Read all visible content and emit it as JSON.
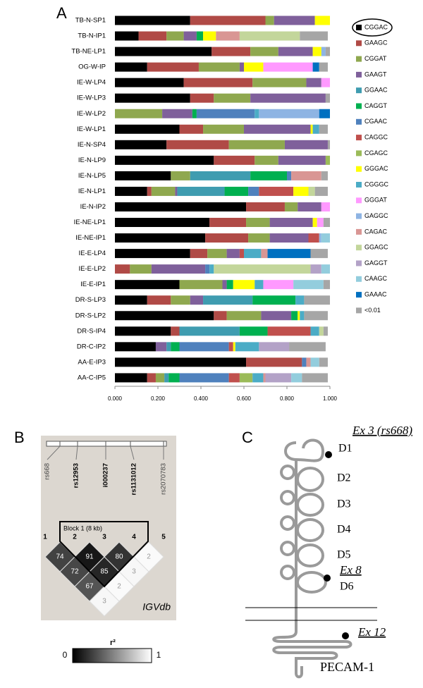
{
  "chart_data": {
    "type": "stacked-barh",
    "panel_label": "A",
    "categories": [
      "TB-N-SP1",
      "TB-N-IP1",
      "TB-NE-LP1",
      "OG-W-IP",
      "IE-W-LP4",
      "IE-W-LP3",
      "IE-W-LP2",
      "IE-W-LP1",
      "IE-N-SP4",
      "IE-N-LP9",
      "IE-N-LP5",
      "IE-N-LP1",
      "IE-N-IP2",
      "IE-NE-LP1",
      "IE-NE-IP1",
      "IE-E-LP4",
      "IE-E-LP2",
      "IE-E-IP1",
      "DR-S-LP3",
      "DR-S-LP2",
      "DR-S-IP4",
      "DR-C-IP2",
      "AA-E-IP3",
      "AA-C-IP5"
    ],
    "xlim": [
      0,
      1
    ],
    "xticks": [
      {
        "value": 0,
        "label": "0.000"
      },
      {
        "value": 0.2,
        "label": "0.200"
      },
      {
        "value": 0.4,
        "label": "0.400"
      },
      {
        "value": 0.6,
        "label": "0.600"
      },
      {
        "value": 0.8,
        "label": "0.800"
      },
      {
        "value": 1,
        "label": "1.000"
      }
    ],
    "series": [
      {
        "name": "CGGAC",
        "color": "#000000",
        "values": [
          0.35,
          0.11,
          0.45,
          0.15,
          0.32,
          0.35,
          0,
          0.3,
          0.24,
          0.46,
          0.26,
          0.15,
          0.61,
          0.44,
          0.42,
          0.35,
          0,
          0.3,
          0.15,
          0.46,
          0.26,
          0.19,
          0.61,
          0.15
        ]
      },
      {
        "name": "GAAGC",
        "color": "#b04a46",
        "values": [
          0.35,
          0.13,
          0.18,
          0.24,
          0.32,
          0.11,
          0,
          0.11,
          0.29,
          0.19,
          0,
          0.02,
          0.18,
          0.17,
          0.2,
          0.08,
          0.07,
          0,
          0.11,
          0.06,
          0.04,
          0,
          0.26,
          0.04
        ]
      },
      {
        "name": "CGGAT",
        "color": "#8fa84f",
        "values": [
          0.04,
          0.08,
          0.13,
          0.19,
          0.25,
          0.17,
          0.22,
          0.19,
          0.26,
          0.11,
          0.09,
          0.11,
          0.06,
          0.11,
          0.1,
          0.09,
          0.1,
          0.2,
          0.09,
          0.16,
          0,
          0,
          0,
          0.04
        ]
      },
      {
        "name": "GAAGT",
        "color": "#7f609b",
        "values": [
          0.19,
          0.06,
          0.16,
          0.02,
          0.07,
          0.35,
          0.14,
          0.31,
          0.2,
          0.22,
          0,
          0.01,
          0.11,
          0.2,
          0.18,
          0.06,
          0.25,
          0.02,
          0.06,
          0.14,
          0,
          0.05,
          0,
          0
        ]
      },
      {
        "name": "GGAAC",
        "color": "#3f9cb0",
        "values": [
          0,
          0,
          0,
          0,
          0,
          0,
          0,
          0,
          0,
          0,
          0.28,
          0.22,
          0,
          0,
          0,
          0,
          0,
          0,
          0.23,
          0,
          0.28,
          0.02,
          0,
          0.02
        ]
      },
      {
        "name": "CAGGT",
        "color": "#00b050",
        "values": [
          0,
          0.03,
          0,
          0,
          0,
          0,
          0.02,
          0,
          0,
          0,
          0.17,
          0.11,
          0,
          0,
          0,
          0,
          0,
          0.03,
          0.2,
          0.03,
          0.13,
          0.04,
          0,
          0.05
        ]
      },
      {
        "name": "CGAAC",
        "color": "#4f81bd",
        "values": [
          0,
          0,
          0,
          0,
          0,
          0,
          0.27,
          0,
          0,
          0,
          0.02,
          0.05,
          0,
          0,
          0,
          0,
          0.02,
          0,
          0,
          0,
          0,
          0.23,
          0.02,
          0.23
        ]
      },
      {
        "name": "CAGGC",
        "color": "#c0504d",
        "values": [
          0,
          0,
          0,
          0,
          0,
          0,
          0,
          0,
          0,
          0,
          0,
          0.16,
          0,
          0,
          0.05,
          0.02,
          0,
          0,
          0,
          0,
          0.2,
          0.02,
          0,
          0.05
        ]
      },
      {
        "name": "CGAGC",
        "color": "#9bbb59",
        "values": [
          0,
          0,
          0,
          0,
          0,
          0,
          0,
          0,
          0,
          0.02,
          0,
          0,
          0,
          0,
          0,
          0,
          0,
          0,
          0,
          0,
          0,
          0,
          0,
          0.06
        ]
      },
      {
        "name": "GGGAC",
        "color": "#ffff00",
        "values": [
          0.07,
          0.06,
          0.04,
          0.09,
          0,
          0,
          0,
          0.01,
          0,
          0,
          0,
          0.07,
          0,
          0.02,
          0,
          0,
          0,
          0.1,
          0,
          0.01,
          0,
          0.01,
          0,
          0
        ]
      },
      {
        "name": "CGGGC",
        "color": "#4bacc6",
        "values": [
          0,
          0,
          0,
          0,
          0,
          0,
          0.02,
          0.03,
          0,
          0,
          0,
          0,
          0,
          0,
          0,
          0.08,
          0.02,
          0.04,
          0.04,
          0.02,
          0.04,
          0.11,
          0,
          0.05
        ]
      },
      {
        "name": "GGGAT",
        "color": "#ff99ff",
        "values": [
          0,
          0,
          0,
          0.23,
          0.04,
          0,
          0,
          0,
          0,
          0,
          0,
          0,
          0.04,
          0.03,
          0,
          0,
          0,
          0.14,
          0,
          0,
          0,
          0,
          0,
          0
        ]
      },
      {
        "name": "GAGGC",
        "color": "#8eb4e3",
        "values": [
          0,
          0,
          0.02,
          0,
          0,
          0,
          0.28,
          0,
          0,
          0,
          0,
          0,
          0,
          0,
          0.01,
          0,
          0,
          0,
          0,
          0,
          0,
          0,
          0,
          0
        ]
      },
      {
        "name": "CAGAC",
        "color": "#d99694",
        "values": [
          0,
          0.11,
          0,
          0,
          0,
          0,
          0,
          0,
          0,
          0,
          0.14,
          0,
          0,
          0,
          0,
          0.03,
          0,
          0,
          0,
          0,
          0,
          0,
          0.02,
          0.01
        ]
      },
      {
        "name": "GGAGC",
        "color": "#c3d69b",
        "values": [
          0,
          0.28,
          0,
          0,
          0,
          0,
          0,
          0,
          0,
          0,
          0,
          0.03,
          0,
          0,
          0,
          0,
          0.45,
          0,
          0,
          0,
          0.02,
          0,
          0,
          0
        ]
      },
      {
        "name": "GAGGT",
        "color": "#b3a2c7",
        "values": [
          0,
          0,
          0,
          0,
          0,
          0,
          0,
          0,
          0,
          0,
          0,
          0,
          0,
          0,
          0,
          0,
          0.05,
          0,
          0,
          0,
          0,
          0.14,
          0,
          0.12
        ]
      },
      {
        "name": "CAAGC",
        "color": "#93cddd",
        "values": [
          0,
          0,
          0,
          0,
          0,
          0,
          0,
          0,
          0,
          0,
          0,
          0,
          0,
          0,
          0.04,
          0,
          0.04,
          0.14,
          0,
          0,
          0,
          0,
          0.04,
          0.05
        ]
      },
      {
        "name": "GAAAC",
        "color": "#0070c0",
        "values": [
          0,
          0,
          0,
          0.03,
          0,
          0,
          0.05,
          0,
          0,
          0,
          0,
          0,
          0,
          0,
          0,
          0.2,
          0,
          0,
          0,
          0,
          0,
          0,
          0,
          0
        ]
      },
      {
        "name": "<0.01",
        "color": "#a6a6a6",
        "values": [
          0,
          0.13,
          0.02,
          0.04,
          0,
          0.02,
          0,
          0.04,
          0.01,
          0,
          0.03,
          0.06,
          0,
          0.03,
          0,
          0.08,
          0,
          0.03,
          0.12,
          0.11,
          0.02,
          0.17,
          0.04,
          0.12
        ]
      }
    ]
  },
  "panel_b": {
    "panel_label": "B",
    "markers": [
      "rs668",
      "rs12953",
      "i000237",
      "rs1131012",
      "rs2070783"
    ],
    "marker_numbers": [
      "1",
      "2",
      "3",
      "4",
      "5"
    ],
    "block_label": "Block 1 (8 kb)",
    "cells": [
      [
        74,
        91,
        80,
        2
      ],
      [
        72,
        85,
        3
      ],
      [
        67,
        2
      ],
      [
        3
      ]
    ],
    "source": "IGVdb",
    "colorbar": {
      "label": "r²",
      "ticks": [
        0,
        1
      ]
    }
  },
  "panel_c": {
    "panel_label": "C",
    "labels": {
      "ex3": "Ex 3 (rs668)",
      "ex8": "Ex 8",
      "ex12": "Ex 12",
      "protein": "PECAM-1"
    },
    "domains": [
      "D1",
      "D2",
      "D3",
      "D4",
      "D5",
      "D6"
    ]
  }
}
